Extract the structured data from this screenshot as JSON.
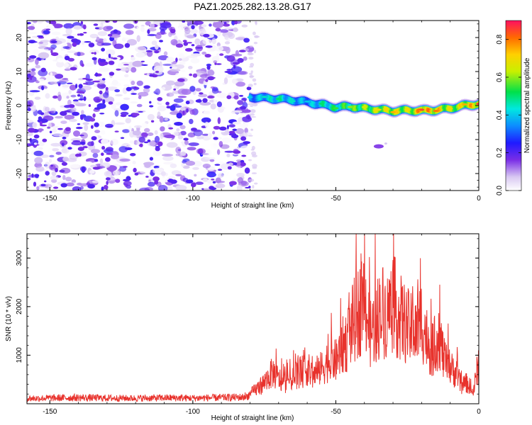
{
  "title": "PAZ1.2025.282.13.28.G17",
  "chart_data": [
    {
      "type": "heatmap",
      "name": "spectrogram",
      "xlabel": "Height of straight line (km)",
      "ylabel": "Frequency (Hz)",
      "xlim": [
        -158,
        0
      ],
      "ylim": [
        -25,
        25
      ],
      "xticks": [
        -150,
        -100,
        -50,
        0
      ],
      "yticks": [
        -20,
        -10,
        0,
        10,
        20
      ],
      "noise_region": {
        "x_range": [
          -158,
          -80
        ],
        "amplitude_range": [
          0.0,
          0.15
        ]
      },
      "signal_track": {
        "description": "Frequency ridge of the occulted GPS signal versus straight-line height",
        "x": [
          -80,
          -75,
          -70,
          -65,
          -60,
          -55,
          -50,
          -45,
          -40,
          -35,
          -30,
          -25,
          -20,
          -15,
          -10,
          -5,
          0
        ],
        "frequency": [
          2.5,
          2.2,
          2.0,
          1.6,
          1.0,
          0.3,
          -0.5,
          -0.3,
          -0.8,
          -1.2,
          -1.6,
          -1.4,
          -1.5,
          -1.3,
          -0.8,
          0.0,
          0.5
        ],
        "peak_amplitude": [
          0.4,
          0.45,
          0.5,
          0.45,
          0.4,
          0.5,
          0.55,
          0.6,
          0.65,
          0.7,
          0.75,
          0.7,
          0.85,
          0.8,
          0.7,
          0.75,
          0.85
        ]
      },
      "isolated_blob": {
        "x": -35,
        "frequency": -12,
        "amplitude": 0.1
      },
      "colorbar": {
        "label": "Normalized spectral amplitude",
        "range": [
          0.0,
          0.9
        ],
        "ticks": [
          "0.0",
          "0.2",
          "0.4",
          "0.6",
          "0.8"
        ]
      }
    },
    {
      "type": "line",
      "name": "snr",
      "xlabel": "Height of straight line (km)",
      "ylabel": "SNR (10 * v/v)",
      "xlim": [
        -158,
        0
      ],
      "ylim": [
        0,
        3500
      ],
      "xticks": [
        -150,
        -100,
        -50,
        0
      ],
      "yticks": [
        1000,
        2000,
        3000
      ],
      "color": "#e8322c",
      "series": [
        {
          "name": "SNR",
          "x": [
            -158,
            -150,
            -140,
            -130,
            -120,
            -110,
            -100,
            -90,
            -82,
            -78,
            -75,
            -72,
            -70,
            -68,
            -65,
            -62,
            -60,
            -58,
            -55,
            -52,
            -50,
            -48,
            -46,
            -44,
            -42,
            -40,
            -38,
            -36,
            -34,
            -32,
            -30,
            -28,
            -26,
            -24,
            -22,
            -20,
            -18,
            -16,
            -14,
            -12,
            -10,
            -8,
            -6,
            -4,
            -2,
            0
          ],
          "values": [
            120,
            130,
            140,
            130,
            125,
            135,
            130,
            140,
            150,
            400,
            600,
            900,
            700,
            600,
            800,
            900,
            1000,
            800,
            1000,
            1300,
            1200,
            1600,
            1800,
            2300,
            2600,
            3000,
            2000,
            2300,
            2700,
            2500,
            2900,
            2500,
            2300,
            2100,
            2000,
            2400,
            1800,
            1500,
            2000,
            1200,
            1000,
            900,
            500,
            600,
            300,
            1200
          ]
        }
      ]
    }
  ]
}
